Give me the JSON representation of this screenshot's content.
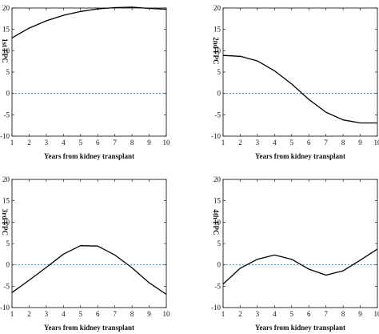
{
  "colors": {
    "curve": "#000000",
    "zero_line": "#1f77c4",
    "axes": "#000000"
  },
  "chart_data": [
    {
      "type": "line",
      "ylabel": "1st FPC",
      "xlabel": "Years from kidney transplant",
      "xlim": [
        1,
        10
      ],
      "ylim": [
        -10,
        20
      ],
      "xticks": [
        1,
        2,
        3,
        4,
        5,
        6,
        7,
        8,
        9,
        10
      ],
      "yticks": [
        -10,
        -5,
        0,
        5,
        10,
        15,
        20
      ],
      "x": [
        1,
        2,
        3,
        4,
        5,
        6,
        7,
        8,
        9,
        10
      ],
      "y": [
        13,
        15.3,
        17,
        18.3,
        19.2,
        19.8,
        20.1,
        20.2,
        19.9,
        19.7
      ],
      "reference_line": 0
    },
    {
      "type": "line",
      "ylabel": "2nd FPC",
      "xlabel": "Years from kidney transplant",
      "xlim": [
        1,
        10
      ],
      "ylim": [
        -10,
        20
      ],
      "xticks": [
        1,
        2,
        3,
        4,
        5,
        6,
        7,
        8,
        9,
        10
      ],
      "yticks": [
        -10,
        -5,
        0,
        5,
        10,
        15,
        20
      ],
      "x": [
        1,
        2,
        3,
        4,
        5,
        6,
        7,
        8,
        9,
        10
      ],
      "y": [
        8.9,
        8.7,
        7.6,
        5.3,
        2.2,
        -1.4,
        -4.4,
        -6.2,
        -6.9,
        -6.9
      ],
      "reference_line": 0
    },
    {
      "type": "line",
      "ylabel": "3rd FPC",
      "xlabel": "Years from kidney transplant",
      "xlim": [
        1,
        10
      ],
      "ylim": [
        -10,
        20
      ],
      "xticks": [
        1,
        2,
        3,
        4,
        5,
        6,
        7,
        8,
        9,
        10
      ],
      "yticks": [
        -10,
        -5,
        0,
        5,
        10,
        15,
        20
      ],
      "x": [
        1,
        2,
        3,
        4,
        5,
        6,
        7,
        8,
        9,
        10
      ],
      "y": [
        -6.5,
        -3.6,
        -0.6,
        2.5,
        4.5,
        4.4,
        2.3,
        -0.7,
        -4.2,
        -6.9
      ],
      "reference_line": 0
    },
    {
      "type": "line",
      "ylabel": "4th FPC",
      "xlabel": "Years from kidney transplant",
      "xlim": [
        1,
        10
      ],
      "ylim": [
        -10,
        20
      ],
      "xticks": [
        1,
        2,
        3,
        4,
        5,
        6,
        7,
        8,
        9,
        10
      ],
      "yticks": [
        -10,
        -5,
        0,
        5,
        10,
        15,
        20
      ],
      "x": [
        1,
        2,
        3,
        4,
        5,
        6,
        7,
        8,
        9,
        10
      ],
      "y": [
        -4.5,
        -0.8,
        1.3,
        2.3,
        1.3,
        -1.0,
        -2.4,
        -1.4,
        1.1,
        3.7
      ],
      "reference_line": 0
    }
  ]
}
